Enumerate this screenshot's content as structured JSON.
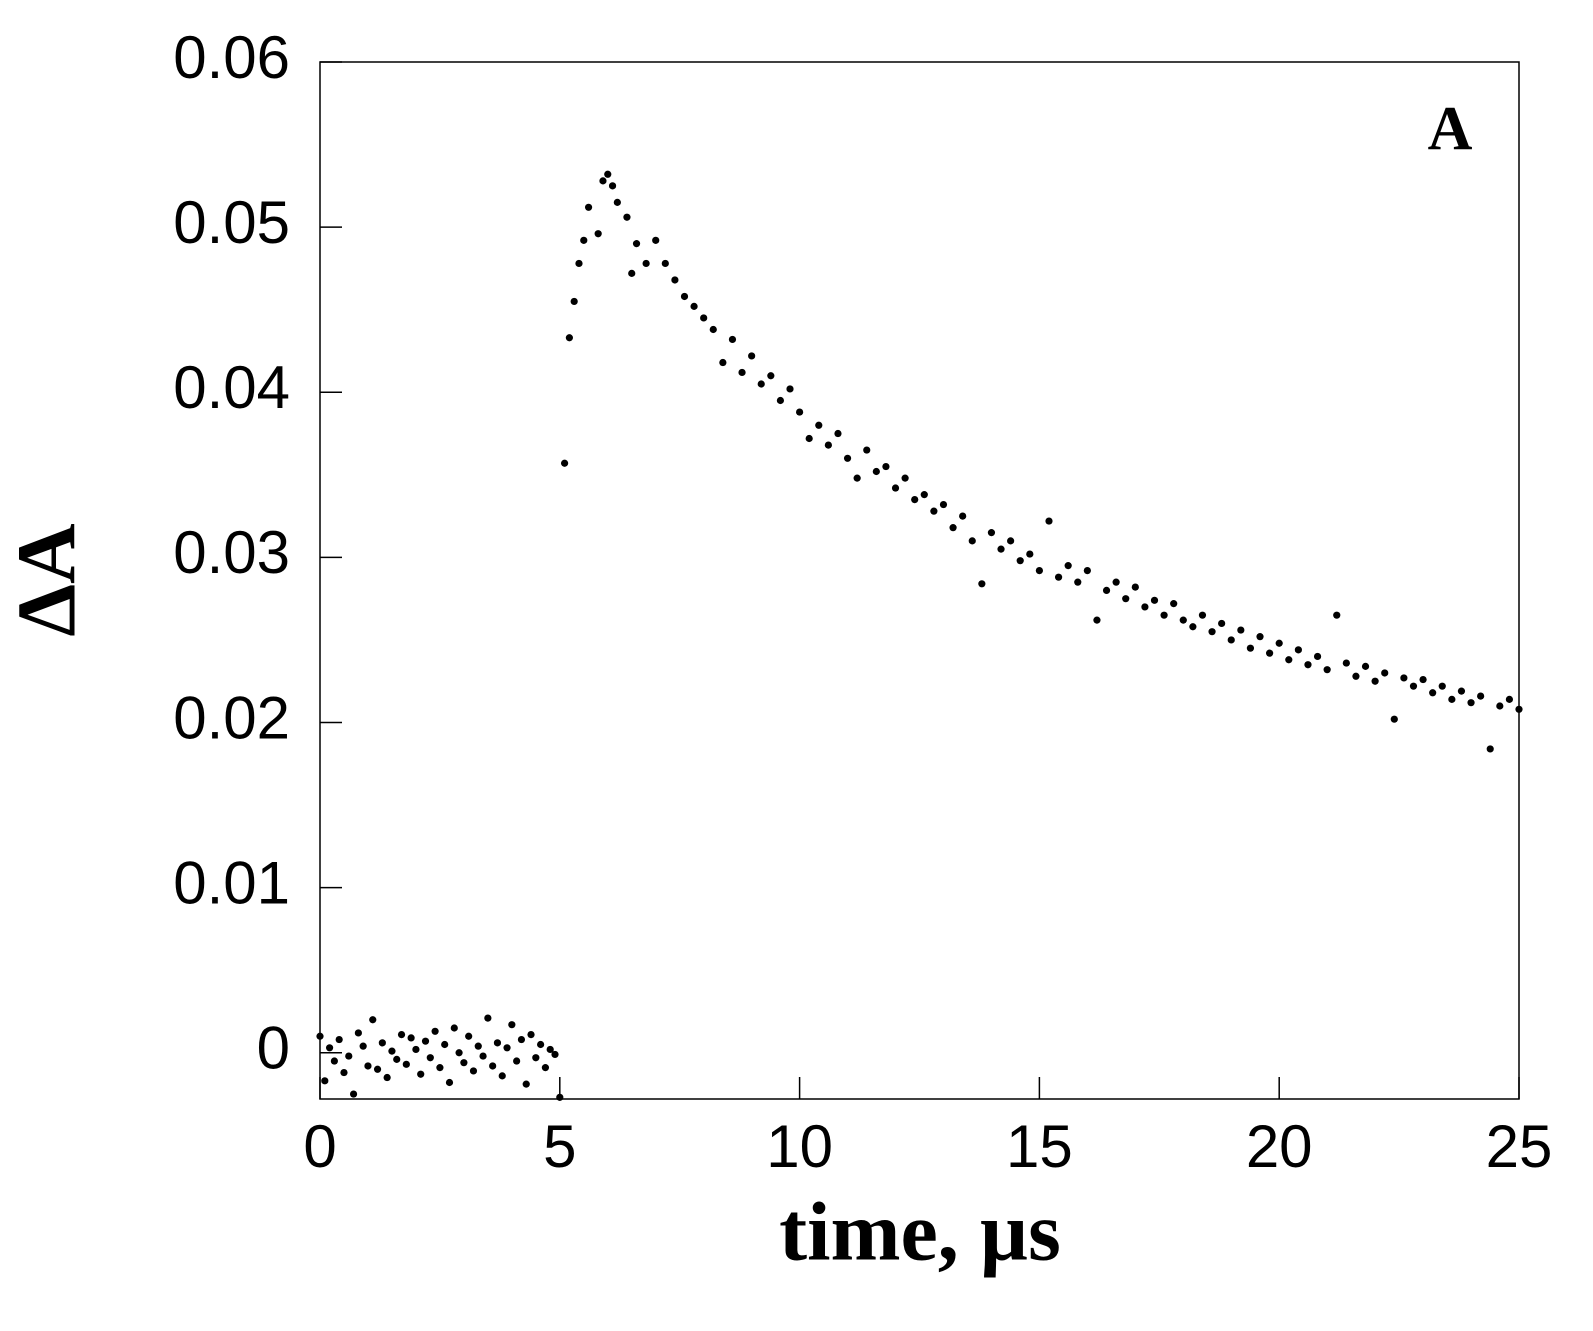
{
  "chart_data": {
    "type": "scatter",
    "annotation": "A",
    "xlabel": "time, µs",
    "ylabel": "ΔA",
    "xlim": [
      0,
      25
    ],
    "ylim": [
      -0.0028,
      0.06
    ],
    "xticks": [
      0,
      5,
      10,
      15,
      20,
      25
    ],
    "yticks": [
      0,
      0.01,
      0.02,
      0.03,
      0.04,
      0.05,
      0.06
    ],
    "series": [
      {
        "color": "#000000",
        "x": [
          0,
          0.1,
          0.2,
          0.3,
          0.4,
          0.5,
          0.6,
          0.7,
          0.8,
          0.9,
          1,
          1.1,
          1.2,
          1.3,
          1.4,
          1.5,
          1.6,
          1.7,
          1.8,
          1.9,
          2,
          2.1,
          2.2,
          2.3,
          2.4,
          2.5,
          2.6,
          2.7,
          2.8,
          2.9,
          3,
          3.1,
          3.2,
          3.3,
          3.4,
          3.5,
          3.6,
          3.7,
          3.8,
          3.9,
          4,
          4.1,
          4.2,
          4.3,
          4.4,
          4.5,
          4.6,
          4.7,
          4.8,
          4.9,
          5,
          5.1,
          5.2,
          5.3,
          5.4,
          5.5,
          5.6,
          5.8,
          5.9,
          6,
          6.1,
          6.2,
          6.4,
          6.5,
          6.6,
          6.8,
          7,
          7.2,
          7.4,
          7.6,
          7.8,
          8,
          8.2,
          8.4,
          8.6,
          8.8,
          9,
          9.2,
          9.4,
          9.6,
          9.8,
          10,
          10.2,
          10.4,
          10.6,
          10.8,
          11,
          11.2,
          11.4,
          11.6,
          11.8,
          12,
          12.2,
          12.4,
          12.6,
          12.8,
          13,
          13.2,
          13.4,
          13.6,
          13.8,
          14,
          14.2,
          14.4,
          14.6,
          14.8,
          15,
          15.2,
          15.4,
          15.6,
          15.8,
          16,
          16.2,
          16.4,
          16.6,
          16.8,
          17,
          17.2,
          17.4,
          17.6,
          17.8,
          18,
          18.2,
          18.4,
          18.6,
          18.8,
          19,
          19.2,
          19.4,
          19.6,
          19.8,
          20,
          20.2,
          20.4,
          20.6,
          20.8,
          21,
          21.2,
          21.4,
          21.6,
          21.8,
          22,
          22.2,
          22.4,
          22.6,
          22.8,
          23,
          23.2,
          23.4,
          23.6,
          23.8,
          24,
          24.2,
          24.4,
          24.6,
          24.8,
          25
        ],
        "values": [
          0.001,
          -0.0017,
          0.0003,
          -0.0005,
          0.0008,
          -0.0012,
          -0.0002,
          -0.0025,
          0.0012,
          0.0004,
          -0.0008,
          0.002,
          -0.001,
          0.0006,
          -0.0015,
          0.0001,
          -0.0004,
          0.0011,
          -0.0007,
          0.0009,
          0.0002,
          -0.0013,
          0.0007,
          -0.0003,
          0.0013,
          -0.0009,
          0.0005,
          -0.0018,
          0.0015,
          0,
          -0.0006,
          0.001,
          -0.0011,
          0.0004,
          -0.0002,
          0.0021,
          -0.0008,
          0.0006,
          -0.0014,
          0.0003,
          0.0017,
          -0.0005,
          0.0008,
          -0.0019,
          0.0011,
          -0.0003,
          0.0005,
          -0.0009,
          0.0002,
          -0.0001,
          -0.0027,
          0.0357,
          0.0433,
          0.0455,
          0.0478,
          0.0492,
          0.0512,
          0.0496,
          0.0528,
          0.0532,
          0.0525,
          0.0515,
          0.0506,
          0.0472,
          0.049,
          0.0478,
          0.0492,
          0.0478,
          0.0468,
          0.0458,
          0.0452,
          0.0445,
          0.0438,
          0.0418,
          0.0432,
          0.0412,
          0.0422,
          0.0405,
          0.041,
          0.0395,
          0.0402,
          0.0388,
          0.0372,
          0.038,
          0.0368,
          0.0375,
          0.036,
          0.0348,
          0.0365,
          0.0352,
          0.0355,
          0.0342,
          0.0348,
          0.0335,
          0.0338,
          0.0328,
          0.0332,
          0.0318,
          0.0325,
          0.031,
          0.0284,
          0.0315,
          0.0305,
          0.031,
          0.0298,
          0.0302,
          0.0292,
          0.0322,
          0.0288,
          0.0295,
          0.0285,
          0.0292,
          0.0262,
          0.028,
          0.0285,
          0.0275,
          0.0282,
          0.027,
          0.0274,
          0.0265,
          0.0272,
          0.0262,
          0.0258,
          0.0265,
          0.0255,
          0.026,
          0.025,
          0.0256,
          0.0245,
          0.0252,
          0.0242,
          0.0248,
          0.0238,
          0.0244,
          0.0235,
          0.024,
          0.0232,
          0.0265,
          0.0236,
          0.0228,
          0.0234,
          0.0225,
          0.023,
          0.0202,
          0.0227,
          0.0222,
          0.0226,
          0.0218,
          0.0222,
          0.0214,
          0.0219,
          0.0212,
          0.0216,
          0.0184,
          0.021,
          0.0214,
          0.0208
        ]
      }
    ]
  }
}
